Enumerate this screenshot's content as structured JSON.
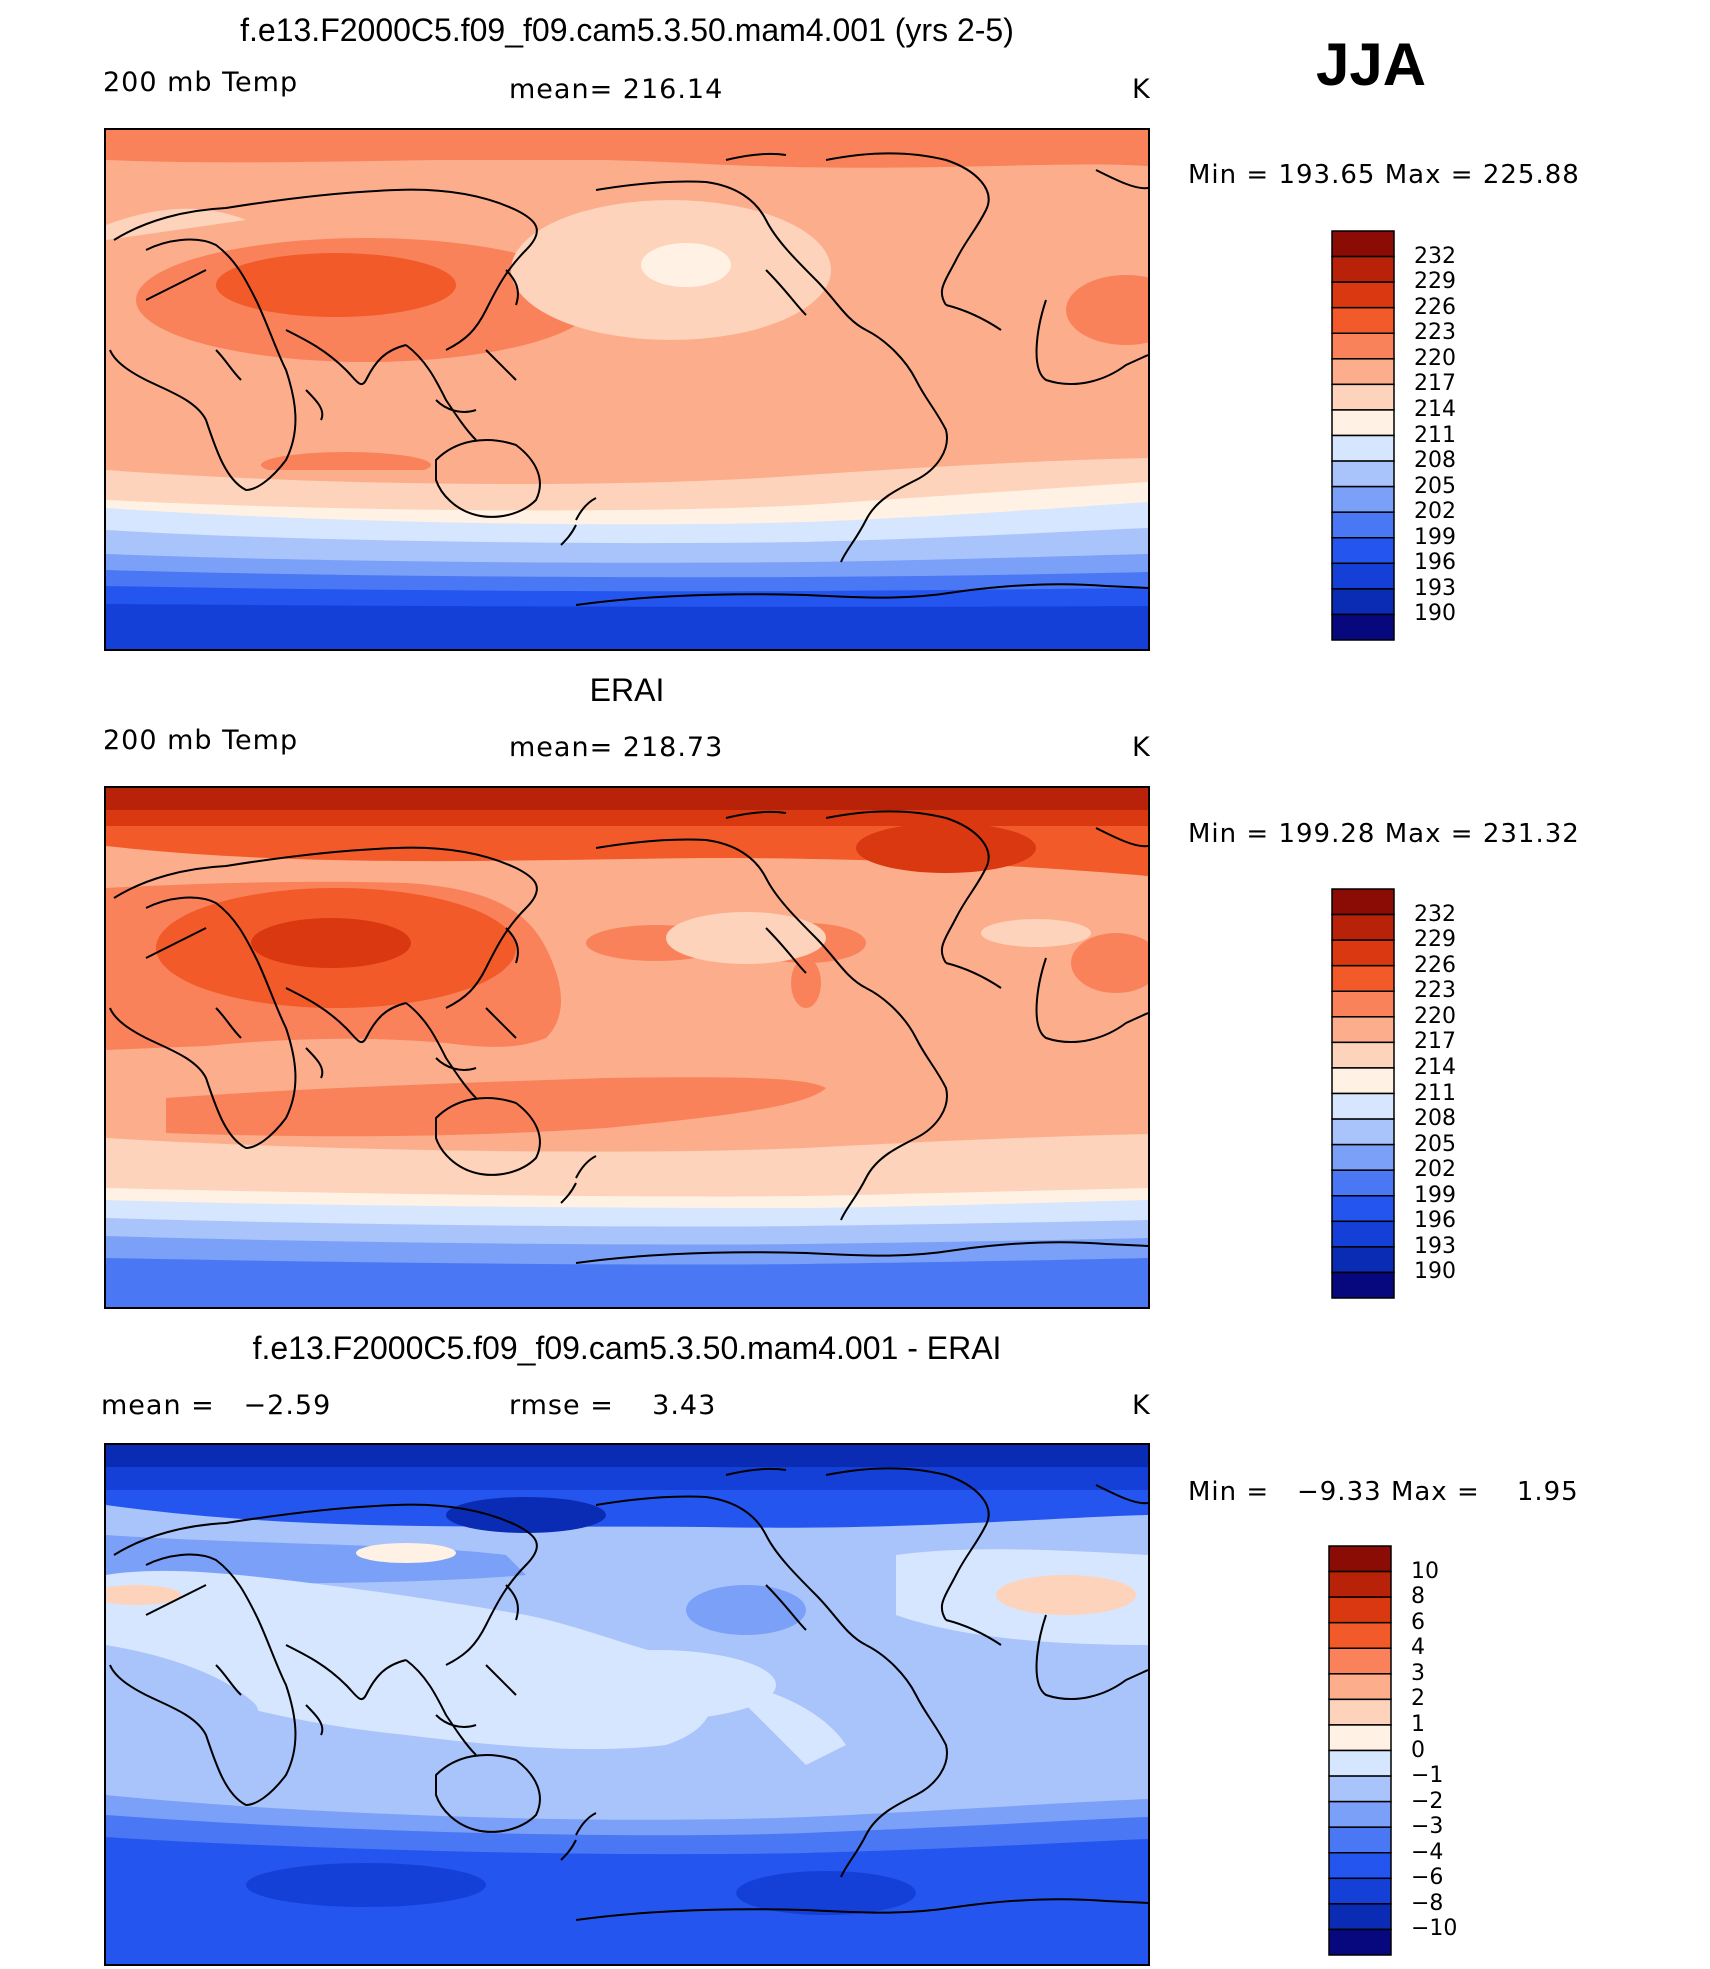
{
  "season": "JJA",
  "colors": {
    "temp_levels": [
      "#08087e",
      "#0a2bb4",
      "#1440d8",
      "#2456ef",
      "#4a77f3",
      "#7aa0f7",
      "#a9c3fb",
      "#d6e6fe",
      "#fff2e4",
      "#fdd3bb",
      "#fcae8c",
      "#f9825b",
      "#f25a29",
      "#da3810",
      "#b82209",
      "#8b0b05"
    ],
    "diff_levels": [
      "#08087e",
      "#0a2bb4",
      "#1440d8",
      "#2456ef",
      "#4a77f3",
      "#7aa0f7",
      "#a9c3fb",
      "#d6e6fe",
      "#fff2e4",
      "#fdd3bb",
      "#fcae8c",
      "#f9825b",
      "#f25a29",
      "#da3810",
      "#b82209",
      "#8b0b05"
    ]
  },
  "panels": [
    {
      "title": "f.e13.F2000C5.f09_f09.cam5.3.50.mam4.001 (yrs 2-5)",
      "left_label": "200 mb Temp",
      "center_label": "mean=",
      "center_value": "216.14",
      "units": "K",
      "min_label": "Min",
      "min_value": "193.65",
      "max_label": "Max",
      "max_value": "225.88",
      "colorbar_ticks": [
        "232",
        "229",
        "226",
        "223",
        "220",
        "217",
        "214",
        "211",
        "208",
        "205",
        "202",
        "199",
        "196",
        "193",
        "190"
      ]
    },
    {
      "title": "ERAI",
      "left_label": "200 mb Temp",
      "center_label": "mean=",
      "center_value": "218.73",
      "units": "K",
      "min_label": "Min",
      "min_value": "199.28",
      "max_label": "Max",
      "max_value": "231.32",
      "colorbar_ticks": [
        "232",
        "229",
        "226",
        "223",
        "220",
        "217",
        "214",
        "211",
        "208",
        "205",
        "202",
        "199",
        "196",
        "193",
        "190"
      ]
    },
    {
      "title": "f.e13.F2000C5.f09_f09.cam5.3.50.mam4.001 - ERAI",
      "left_label": "mean =",
      "left_value": "−2.59",
      "center_label": "rmse =",
      "center_value": "3.43",
      "units": "K",
      "min_label": "Min",
      "min_value": "−9.33",
      "max_label": "Max",
      "max_value": "1.95",
      "colorbar_ticks": [
        "10",
        "8",
        "6",
        "4",
        "3",
        "2",
        "1",
        "0",
        "−1",
        "−2",
        "−3",
        "−4",
        "−6",
        "−8",
        "−10"
      ]
    }
  ]
}
